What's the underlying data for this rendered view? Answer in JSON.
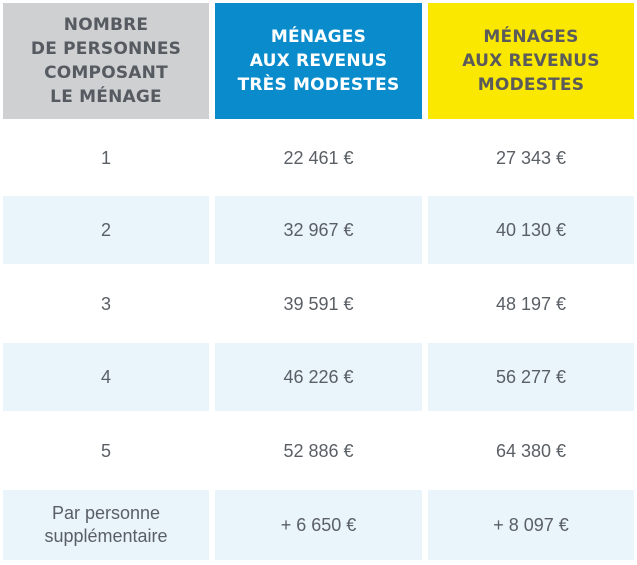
{
  "headers": {
    "persons": "NOMBRE\nDE PERSONNES\nCOMPOSANT\nLE MÉNAGE",
    "very_modest": "MÉNAGES\nAUX REVENUS\nTRÈS MODESTES",
    "modest": "MÉNAGES\nAUX REVENUS\nMODESTES"
  },
  "colors": {
    "header_gray": "#cfd0d2",
    "header_blue": "#0a8ccc",
    "header_yellow": "#fbe800",
    "row_shade": "#eaf4fb"
  },
  "rows": [
    {
      "persons": "1",
      "very_modest": "22 461 €",
      "modest": "27 343 €"
    },
    {
      "persons": "2",
      "very_modest": "32 967 €",
      "modest": "40 130 €"
    },
    {
      "persons": "3",
      "very_modest": "39 591 €",
      "modest": "48 197 €"
    },
    {
      "persons": "4",
      "very_modest": "46 226 €",
      "modest": "56 277 €"
    },
    {
      "persons": "5",
      "very_modest": "52 886 €",
      "modest": "64 380 €"
    },
    {
      "persons": "Par personne\nsupplémentaire",
      "very_modest": "+ 6 650 €",
      "modest": "+  8 097 €"
    }
  ]
}
